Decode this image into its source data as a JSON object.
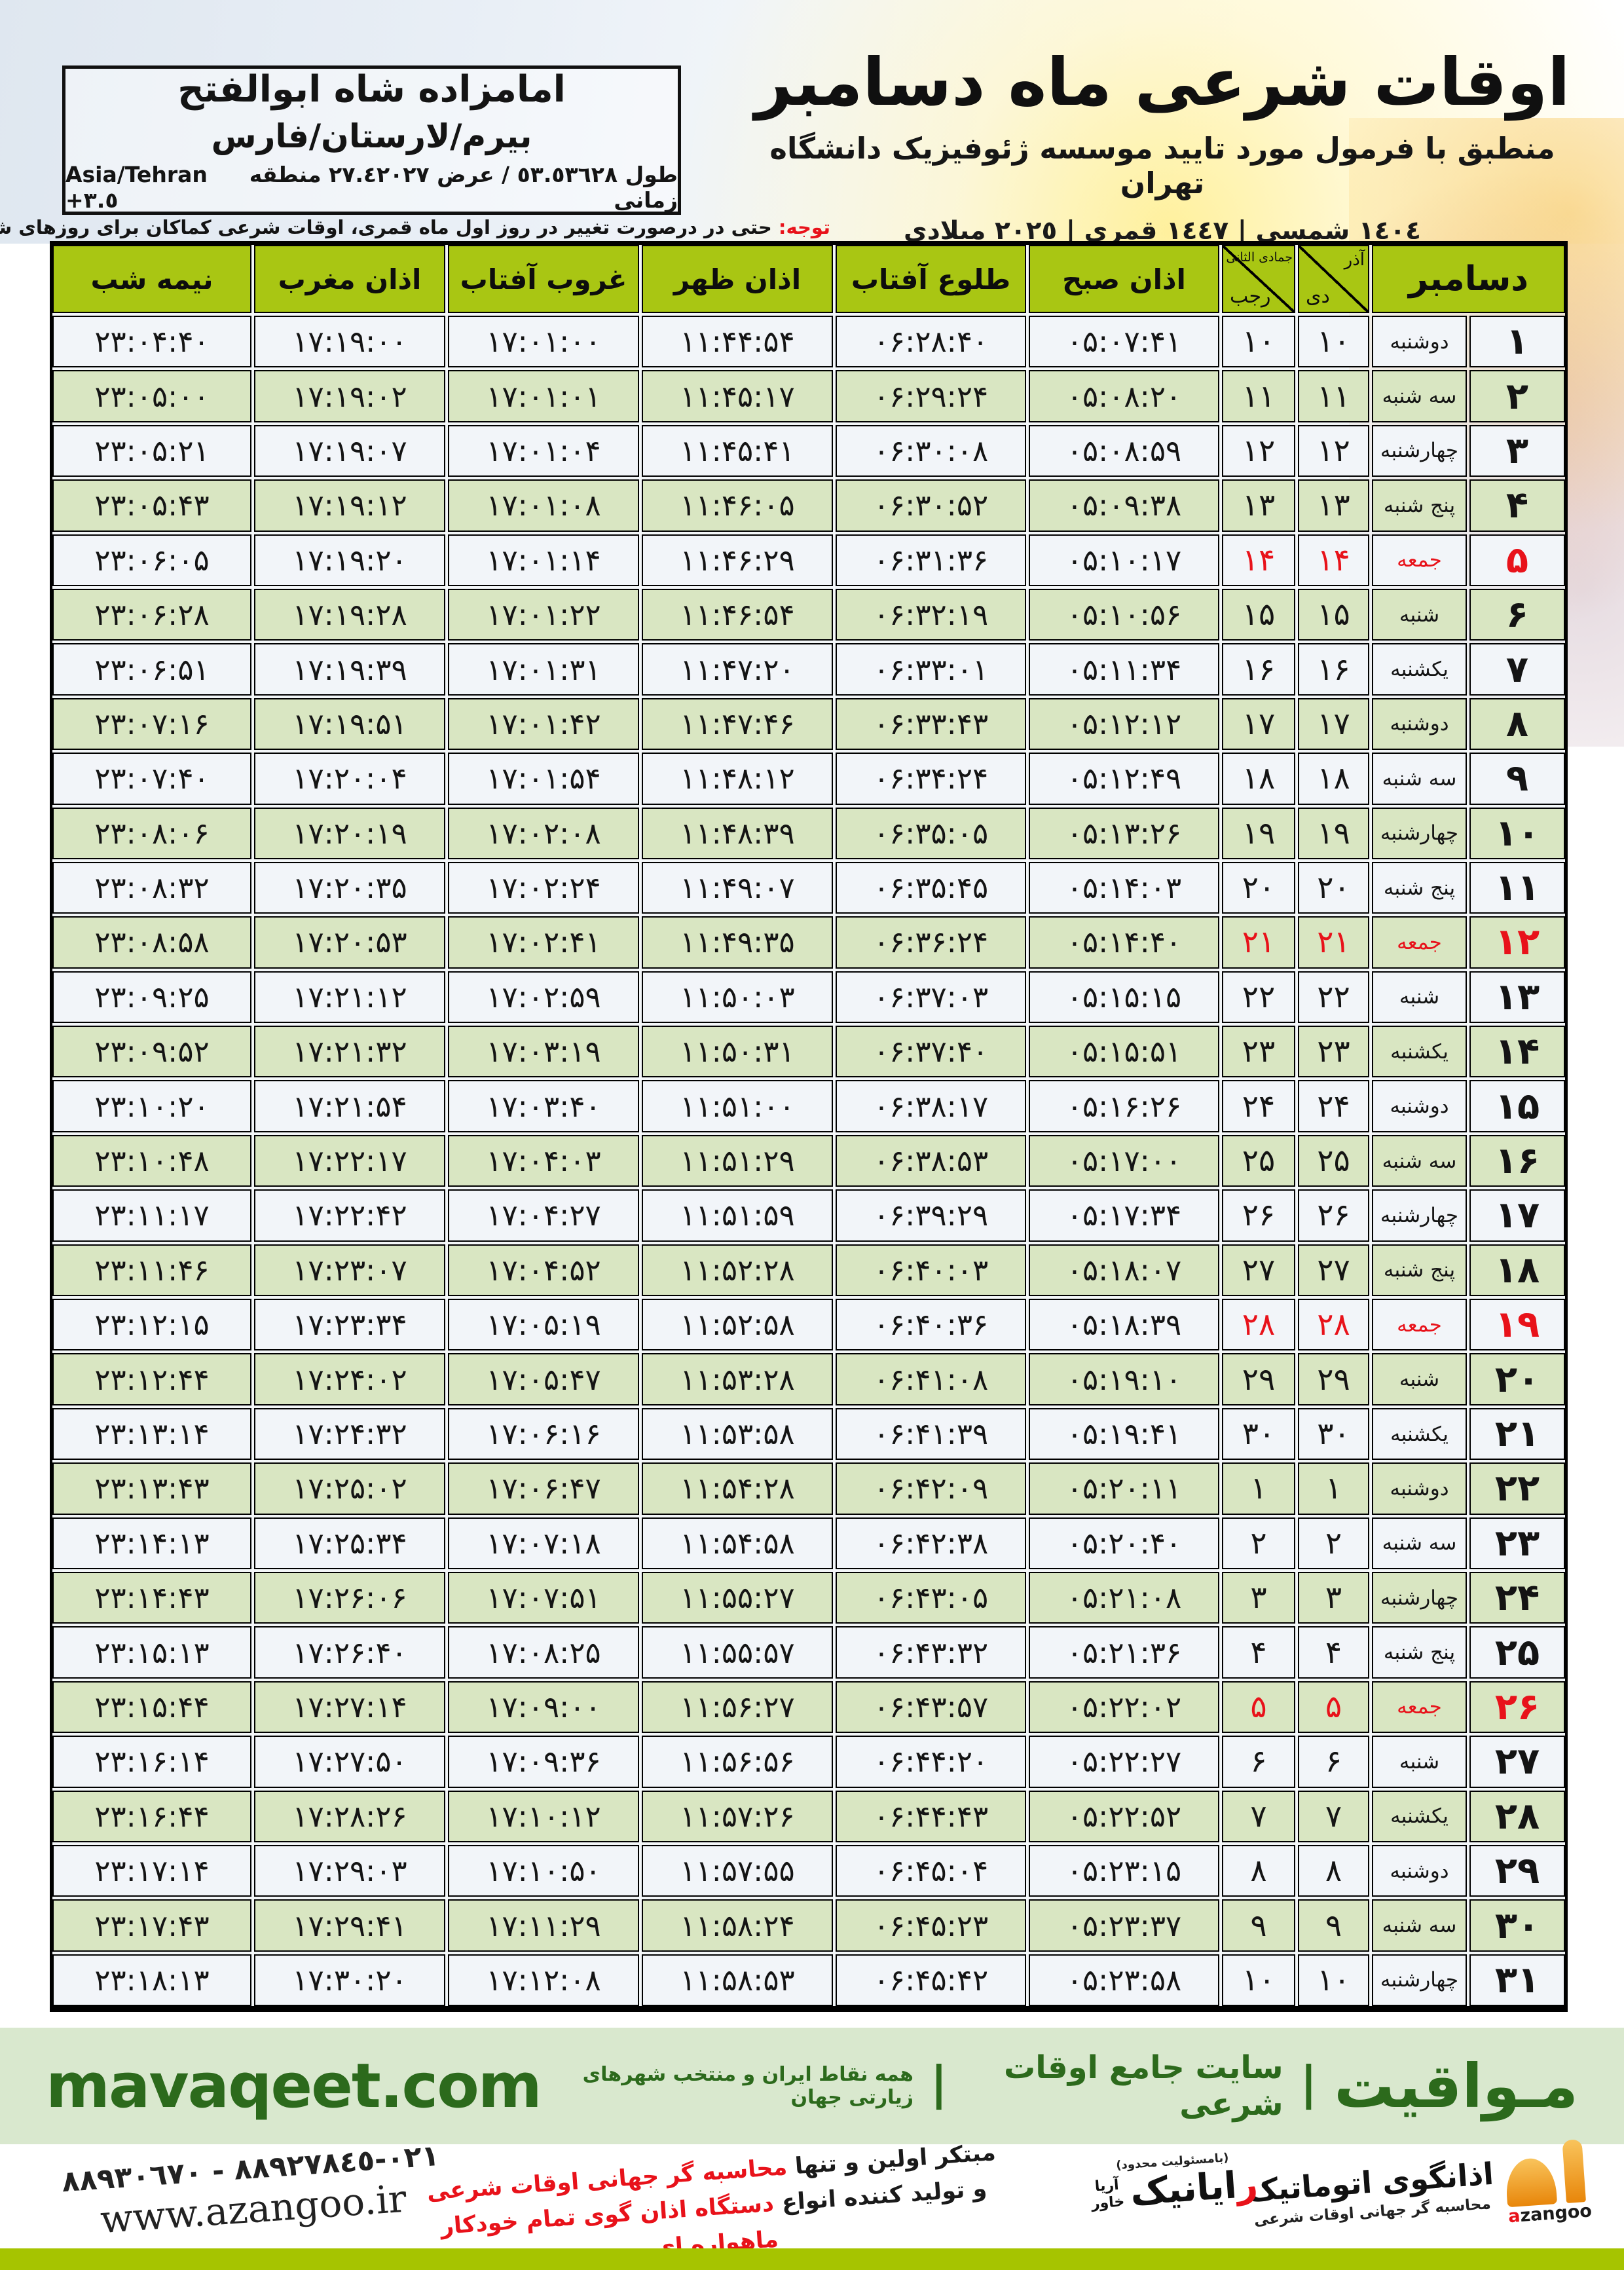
{
  "header": {
    "title": "اوقات شرعی ماه دسامبر",
    "subtitle": "منطبق با فرمول مورد تایید موسسه ژئوفیزیک دانشگاه تهران",
    "date_line": "١٤٠٤ شمسی | ١٤٤٧ قمری | ٢٠٢٥ میلادی",
    "location": {
      "name": "امامزاده شاه ابوالفتح",
      "region": "بیرم/لارستان/فارس",
      "coords_fa": "طول ٥٣.٥٣٦٢٨ / عرض ٢٧.٤٢٠٢٧ منطقه زمانی",
      "coords_tz": "Asia/Tehran +٣.٥"
    },
    "notice_label": "توجه:",
    "notice_text": " حتی در درصورت تغییر در روز اول ماه قمری، اوقات شرعی کماکان برای روزهای شمسی و میلادی معتبر است."
  },
  "table": {
    "headers": {
      "december": "دسامبر",
      "solar_top": "آذر",
      "solar_bottom": "دی",
      "lunar_top": "جمادی الثانی",
      "lunar_bottom": "رجب",
      "fajr": "اذان صبح",
      "sunrise": "طلوع آفتاب",
      "dhuhr": "اذان ظهر",
      "sunset": "غروب آفتاب",
      "maghrib": "اذان مغرب",
      "midnight": "نیمه شب"
    },
    "rows": [
      {
        "day": "۱",
        "weekday": "دوشنبه",
        "solar": "۱۰",
        "lunar": "۱۰",
        "fajr": "۰۵:۰۷:۴۱",
        "sunrise": "۰۶:۲۸:۴۰",
        "dhuhr": "۱۱:۴۴:۵۴",
        "sunset": "۱۷:۰۱:۰۰",
        "maghrib": "۱۷:۱۹:۰۰",
        "midnight": "۲۳:۰۴:۴۰",
        "friday": false
      },
      {
        "day": "۲",
        "weekday": "سه شنبه",
        "solar": "۱۱",
        "lunar": "۱۱",
        "fajr": "۰۵:۰۸:۲۰",
        "sunrise": "۰۶:۲۹:۲۴",
        "dhuhr": "۱۱:۴۵:۱۷",
        "sunset": "۱۷:۰۱:۰۱",
        "maghrib": "۱۷:۱۹:۰۲",
        "midnight": "۲۳:۰۵:۰۰",
        "friday": false
      },
      {
        "day": "۳",
        "weekday": "چهارشنبه",
        "solar": "۱۲",
        "lunar": "۱۲",
        "fajr": "۰۵:۰۸:۵۹",
        "sunrise": "۰۶:۳۰:۰۸",
        "dhuhr": "۱۱:۴۵:۴۱",
        "sunset": "۱۷:۰۱:۰۴",
        "maghrib": "۱۷:۱۹:۰۷",
        "midnight": "۲۳:۰۵:۲۱",
        "friday": false
      },
      {
        "day": "۴",
        "weekday": "پنج شنبه",
        "solar": "۱۳",
        "lunar": "۱۳",
        "fajr": "۰۵:۰۹:۳۸",
        "sunrise": "۰۶:۳۰:۵۲",
        "dhuhr": "۱۱:۴۶:۰۵",
        "sunset": "۱۷:۰۱:۰۸",
        "maghrib": "۱۷:۱۹:۱۲",
        "midnight": "۲۳:۰۵:۴۳",
        "friday": false
      },
      {
        "day": "۵",
        "weekday": "جمعه",
        "solar": "۱۴",
        "lunar": "۱۴",
        "fajr": "۰۵:۱۰:۱۷",
        "sunrise": "۰۶:۳۱:۳۶",
        "dhuhr": "۱۱:۴۶:۲۹",
        "sunset": "۱۷:۰۱:۱۴",
        "maghrib": "۱۷:۱۹:۲۰",
        "midnight": "۲۳:۰۶:۰۵",
        "friday": true
      },
      {
        "day": "۶",
        "weekday": "شنبه",
        "solar": "۱۵",
        "lunar": "۱۵",
        "fajr": "۰۵:۱۰:۵۶",
        "sunrise": "۰۶:۳۲:۱۹",
        "dhuhr": "۱۱:۴۶:۵۴",
        "sunset": "۱۷:۰۱:۲۲",
        "maghrib": "۱۷:۱۹:۲۸",
        "midnight": "۲۳:۰۶:۲۸",
        "friday": false
      },
      {
        "day": "۷",
        "weekday": "یکشنبه",
        "solar": "۱۶",
        "lunar": "۱۶",
        "fajr": "۰۵:۱۱:۳۴",
        "sunrise": "۰۶:۳۳:۰۱",
        "dhuhr": "۱۱:۴۷:۲۰",
        "sunset": "۱۷:۰۱:۳۱",
        "maghrib": "۱۷:۱۹:۳۹",
        "midnight": "۲۳:۰۶:۵۱",
        "friday": false
      },
      {
        "day": "۸",
        "weekday": "دوشنبه",
        "solar": "۱۷",
        "lunar": "۱۷",
        "fajr": "۰۵:۱۲:۱۲",
        "sunrise": "۰۶:۳۳:۴۳",
        "dhuhr": "۱۱:۴۷:۴۶",
        "sunset": "۱۷:۰۱:۴۲",
        "maghrib": "۱۷:۱۹:۵۱",
        "midnight": "۲۳:۰۷:۱۶",
        "friday": false
      },
      {
        "day": "۹",
        "weekday": "سه شنبه",
        "solar": "۱۸",
        "lunar": "۱۸",
        "fajr": "۰۵:۱۲:۴۹",
        "sunrise": "۰۶:۳۴:۲۴",
        "dhuhr": "۱۱:۴۸:۱۲",
        "sunset": "۱۷:۰۱:۵۴",
        "maghrib": "۱۷:۲۰:۰۴",
        "midnight": "۲۳:۰۷:۴۰",
        "friday": false
      },
      {
        "day": "۱۰",
        "weekday": "چهارشنبه",
        "solar": "۱۹",
        "lunar": "۱۹",
        "fajr": "۰۵:۱۳:۲۶",
        "sunrise": "۰۶:۳۵:۰۵",
        "dhuhr": "۱۱:۴۸:۳۹",
        "sunset": "۱۷:۰۲:۰۸",
        "maghrib": "۱۷:۲۰:۱۹",
        "midnight": "۲۳:۰۸:۰۶",
        "friday": false
      },
      {
        "day": "۱۱",
        "weekday": "پنج شنبه",
        "solar": "۲۰",
        "lunar": "۲۰",
        "fajr": "۰۵:۱۴:۰۳",
        "sunrise": "۰۶:۳۵:۴۵",
        "dhuhr": "۱۱:۴۹:۰۷",
        "sunset": "۱۷:۰۲:۲۴",
        "maghrib": "۱۷:۲۰:۳۵",
        "midnight": "۲۳:۰۸:۳۲",
        "friday": false
      },
      {
        "day": "۱۲",
        "weekday": "جمعه",
        "solar": "۲۱",
        "lunar": "۲۱",
        "fajr": "۰۵:۱۴:۴۰",
        "sunrise": "۰۶:۳۶:۲۴",
        "dhuhr": "۱۱:۴۹:۳۵",
        "sunset": "۱۷:۰۲:۴۱",
        "maghrib": "۱۷:۲۰:۵۳",
        "midnight": "۲۳:۰۸:۵۸",
        "friday": true
      },
      {
        "day": "۱۳",
        "weekday": "شنبه",
        "solar": "۲۲",
        "lunar": "۲۲",
        "fajr": "۰۵:۱۵:۱۵",
        "sunrise": "۰۶:۳۷:۰۳",
        "dhuhr": "۱۱:۵۰:۰۳",
        "sunset": "۱۷:۰۲:۵۹",
        "maghrib": "۱۷:۲۱:۱۲",
        "midnight": "۲۳:۰۹:۲۵",
        "friday": false
      },
      {
        "day": "۱۴",
        "weekday": "یکشنبه",
        "solar": "۲۳",
        "lunar": "۲۳",
        "fajr": "۰۵:۱۵:۵۱",
        "sunrise": "۰۶:۳۷:۴۰",
        "dhuhr": "۱۱:۵۰:۳۱",
        "sunset": "۱۷:۰۳:۱۹",
        "maghrib": "۱۷:۲۱:۳۲",
        "midnight": "۲۳:۰۹:۵۲",
        "friday": false
      },
      {
        "day": "۱۵",
        "weekday": "دوشنبه",
        "solar": "۲۴",
        "lunar": "۲۴",
        "fajr": "۰۵:۱۶:۲۶",
        "sunrise": "۰۶:۳۸:۱۷",
        "dhuhr": "۱۱:۵۱:۰۰",
        "sunset": "۱۷:۰۳:۴۰",
        "maghrib": "۱۷:۲۱:۵۴",
        "midnight": "۲۳:۱۰:۲۰",
        "friday": false
      },
      {
        "day": "۱۶",
        "weekday": "سه شنبه",
        "solar": "۲۵",
        "lunar": "۲۵",
        "fajr": "۰۵:۱۷:۰۰",
        "sunrise": "۰۶:۳۸:۵۳",
        "dhuhr": "۱۱:۵۱:۲۹",
        "sunset": "۱۷:۰۴:۰۳",
        "maghrib": "۱۷:۲۲:۱۷",
        "midnight": "۲۳:۱۰:۴۸",
        "friday": false
      },
      {
        "day": "۱۷",
        "weekday": "چهارشنبه",
        "solar": "۲۶",
        "lunar": "۲۶",
        "fajr": "۰۵:۱۷:۳۴",
        "sunrise": "۰۶:۳۹:۲۹",
        "dhuhr": "۱۱:۵۱:۵۹",
        "sunset": "۱۷:۰۴:۲۷",
        "maghrib": "۱۷:۲۲:۴۲",
        "midnight": "۲۳:۱۱:۱۷",
        "friday": false
      },
      {
        "day": "۱۸",
        "weekday": "پنج شنبه",
        "solar": "۲۷",
        "lunar": "۲۷",
        "fajr": "۰۵:۱۸:۰۷",
        "sunrise": "۰۶:۴۰:۰۳",
        "dhuhr": "۱۱:۵۲:۲۸",
        "sunset": "۱۷:۰۴:۵۲",
        "maghrib": "۱۷:۲۳:۰۷",
        "midnight": "۲۳:۱۱:۴۶",
        "friday": false
      },
      {
        "day": "۱۹",
        "weekday": "جمعه",
        "solar": "۲۸",
        "lunar": "۲۸",
        "fajr": "۰۵:۱۸:۳۹",
        "sunrise": "۰۶:۴۰:۳۶",
        "dhuhr": "۱۱:۵۲:۵۸",
        "sunset": "۱۷:۰۵:۱۹",
        "maghrib": "۱۷:۲۳:۳۴",
        "midnight": "۲۳:۱۲:۱۵",
        "friday": true
      },
      {
        "day": "۲۰",
        "weekday": "شنبه",
        "solar": "۲۹",
        "lunar": "۲۹",
        "fajr": "۰۵:۱۹:۱۰",
        "sunrise": "۰۶:۴۱:۰۸",
        "dhuhr": "۱۱:۵۳:۲۸",
        "sunset": "۱۷:۰۵:۴۷",
        "maghrib": "۱۷:۲۴:۰۲",
        "midnight": "۲۳:۱۲:۴۴",
        "friday": false
      },
      {
        "day": "۲۱",
        "weekday": "یکشنبه",
        "solar": "۳۰",
        "lunar": "۳۰",
        "fajr": "۰۵:۱۹:۴۱",
        "sunrise": "۰۶:۴۱:۳۹",
        "dhuhr": "۱۱:۵۳:۵۸",
        "sunset": "۱۷:۰۶:۱۶",
        "maghrib": "۱۷:۲۴:۳۲",
        "midnight": "۲۳:۱۳:۱۴",
        "friday": false
      },
      {
        "day": "۲۲",
        "weekday": "دوشنبه",
        "solar": "۱",
        "lunar": "۱",
        "fajr": "۰۵:۲۰:۱۱",
        "sunrise": "۰۶:۴۲:۰۹",
        "dhuhr": "۱۱:۵۴:۲۸",
        "sunset": "۱۷:۰۶:۴۷",
        "maghrib": "۱۷:۲۵:۰۲",
        "midnight": "۲۳:۱۳:۴۳",
        "friday": false
      },
      {
        "day": "۲۳",
        "weekday": "سه شنبه",
        "solar": "۲",
        "lunar": "۲",
        "fajr": "۰۵:۲۰:۴۰",
        "sunrise": "۰۶:۴۲:۳۸",
        "dhuhr": "۱۱:۵۴:۵۸",
        "sunset": "۱۷:۰۷:۱۸",
        "maghrib": "۱۷:۲۵:۳۴",
        "midnight": "۲۳:۱۴:۱۳",
        "friday": false
      },
      {
        "day": "۲۴",
        "weekday": "چهارشنبه",
        "solar": "۳",
        "lunar": "۳",
        "fajr": "۰۵:۲۱:۰۸",
        "sunrise": "۰۶:۴۳:۰۵",
        "dhuhr": "۱۱:۵۵:۲۷",
        "sunset": "۱۷:۰۷:۵۱",
        "maghrib": "۱۷:۲۶:۰۶",
        "midnight": "۲۳:۱۴:۴۳",
        "friday": false
      },
      {
        "day": "۲۵",
        "weekday": "پنج شنبه",
        "solar": "۴",
        "lunar": "۴",
        "fajr": "۰۵:۲۱:۳۶",
        "sunrise": "۰۶:۴۳:۳۲",
        "dhuhr": "۱۱:۵۵:۵۷",
        "sunset": "۱۷:۰۸:۲۵",
        "maghrib": "۱۷:۲۶:۴۰",
        "midnight": "۲۳:۱۵:۱۳",
        "friday": false
      },
      {
        "day": "۲۶",
        "weekday": "جمعه",
        "solar": "۵",
        "lunar": "۵",
        "fajr": "۰۵:۲۲:۰۲",
        "sunrise": "۰۶:۴۳:۵۷",
        "dhuhr": "۱۱:۵۶:۲۷",
        "sunset": "۱۷:۰۹:۰۰",
        "maghrib": "۱۷:۲۷:۱۴",
        "midnight": "۲۳:۱۵:۴۴",
        "friday": true
      },
      {
        "day": "۲۷",
        "weekday": "شنبه",
        "solar": "۶",
        "lunar": "۶",
        "fajr": "۰۵:۲۲:۲۷",
        "sunrise": "۰۶:۴۴:۲۰",
        "dhuhr": "۱۱:۵۶:۵۶",
        "sunset": "۱۷:۰۹:۳۶",
        "maghrib": "۱۷:۲۷:۵۰",
        "midnight": "۲۳:۱۶:۱۴",
        "friday": false
      },
      {
        "day": "۲۸",
        "weekday": "یکشنبه",
        "solar": "۷",
        "lunar": "۷",
        "fajr": "۰۵:۲۲:۵۲",
        "sunrise": "۰۶:۴۴:۴۳",
        "dhuhr": "۱۱:۵۷:۲۶",
        "sunset": "۱۷:۱۰:۱۲",
        "maghrib": "۱۷:۲۸:۲۶",
        "midnight": "۲۳:۱۶:۴۴",
        "friday": false
      },
      {
        "day": "۲۹",
        "weekday": "دوشنبه",
        "solar": "۸",
        "lunar": "۸",
        "fajr": "۰۵:۲۳:۱۵",
        "sunrise": "۰۶:۴۵:۰۴",
        "dhuhr": "۱۱:۵۷:۵۵",
        "sunset": "۱۷:۱۰:۵۰",
        "maghrib": "۱۷:۲۹:۰۳",
        "midnight": "۲۳:۱۷:۱۴",
        "friday": false
      },
      {
        "day": "۳۰",
        "weekday": "سه شنبه",
        "solar": "۹",
        "lunar": "۹",
        "fajr": "۰۵:۲۳:۳۷",
        "sunrise": "۰۶:۴۵:۲۳",
        "dhuhr": "۱۱:۵۸:۲۴",
        "sunset": "۱۷:۱۱:۲۹",
        "maghrib": "۱۷:۲۹:۴۱",
        "midnight": "۲۳:۱۷:۴۳",
        "friday": false
      },
      {
        "day": "۳۱",
        "weekday": "چهارشنبه",
        "solar": "۱۰",
        "lunar": "۱۰",
        "fajr": "۰۵:۲۳:۵۸",
        "sunrise": "۰۶:۴۵:۴۲",
        "dhuhr": "۱۱:۵۸:۵۳",
        "sunset": "۱۷:۱۲:۰۸",
        "maghrib": "۱۷:۳۰:۲۰",
        "midnight": "۲۳:۱۸:۱۳",
        "friday": false
      }
    ]
  },
  "footer": {
    "mavaqeet": {
      "brand": "مـواقیت",
      "separator": "|",
      "tagline1": "سایت جامع اوقات شرعی",
      "tagline2": "همه نقاط ایران و منتخب شهرهای زیارتی جهان",
      "url": "mavaqeet.com"
    },
    "azangoo": {
      "brand": "اذانگوی اتوماتیک",
      "tagline": "محاسبه گر جهانی اوقات شرعی",
      "wordmark_red": "a",
      "wordmark_rest": "zangoo"
    },
    "rayanik": {
      "note": "(بامسئولیت محدود)",
      "brand_red": "ر",
      "brand_rest": "ایانیک",
      "side_top": "آریا",
      "side_bottom": "خاور"
    },
    "promo": {
      "line1_black": "مبتکر اولین و تنها ",
      "line1_red": "محاسبه گر جهانی اوقات شرعی",
      "line2_black": "و تولید کننده انواع ",
      "line2_red": "دستگاه اذان گوی تمام خودکار ماهواره ای"
    },
    "contact": {
      "phone": "٠٢١-٨٨٩٢٧٨٤٥ - ٨٨٩٣٠٦٧٠",
      "url": "www.azangoo.ir"
    }
  }
}
